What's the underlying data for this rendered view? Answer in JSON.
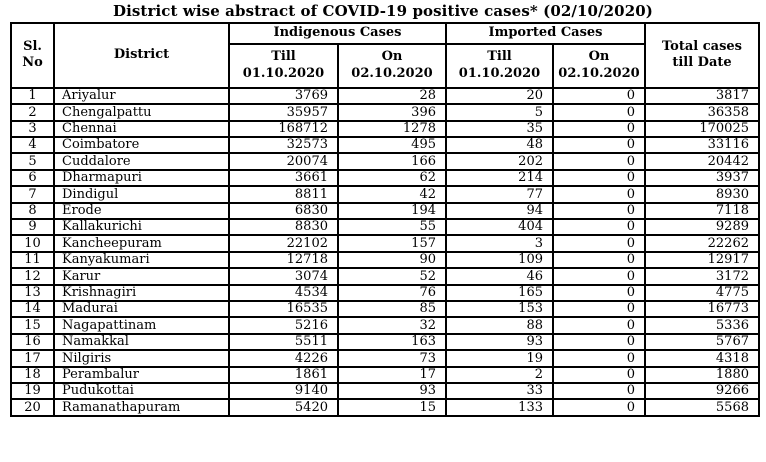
{
  "title": "District wise abstract of COVID-19 positive cases* (02/10/2020)",
  "table": {
    "headers": {
      "sl_no": "Sl.\nNo",
      "district": "District",
      "indigenous_group": "Indigenous Cases",
      "imported_group": "Imported Cases",
      "till_label": "Till\n01.10.2020",
      "on_label": "On\n02.10.2020",
      "total": "Total cases\ntill Date"
    },
    "rows": [
      {
        "sl": "1",
        "district": "Ariyalur",
        "ind_till": "3769",
        "ind_on": "28",
        "imp_till": "20",
        "imp_on": "0",
        "total": "3817"
      },
      {
        "sl": "2",
        "district": "Chengalpattu",
        "ind_till": "35957",
        "ind_on": "396",
        "imp_till": "5",
        "imp_on": "0",
        "total": "36358"
      },
      {
        "sl": "3",
        "district": "Chennai",
        "ind_till": "168712",
        "ind_on": "1278",
        "imp_till": "35",
        "imp_on": "0",
        "total": "170025"
      },
      {
        "sl": "4",
        "district": "Coimbatore",
        "ind_till": "32573",
        "ind_on": "495",
        "imp_till": "48",
        "imp_on": "0",
        "total": "33116"
      },
      {
        "sl": "5",
        "district": "Cuddalore",
        "ind_till": "20074",
        "ind_on": "166",
        "imp_till": "202",
        "imp_on": "0",
        "total": "20442"
      },
      {
        "sl": "6",
        "district": "Dharmapuri",
        "ind_till": "3661",
        "ind_on": "62",
        "imp_till": "214",
        "imp_on": "0",
        "total": "3937"
      },
      {
        "sl": "7",
        "district": "Dindigul",
        "ind_till": "8811",
        "ind_on": "42",
        "imp_till": "77",
        "imp_on": "0",
        "total": "8930"
      },
      {
        "sl": "8",
        "district": "Erode",
        "ind_till": "6830",
        "ind_on": "194",
        "imp_till": "94",
        "imp_on": "0",
        "total": "7118"
      },
      {
        "sl": "9",
        "district": "Kallakurichi",
        "ind_till": "8830",
        "ind_on": "55",
        "imp_till": "404",
        "imp_on": "0",
        "total": "9289"
      },
      {
        "sl": "10",
        "district": "Kancheepuram",
        "ind_till": "22102",
        "ind_on": "157",
        "imp_till": "3",
        "imp_on": "0",
        "total": "22262"
      },
      {
        "sl": "11",
        "district": "Kanyakumari",
        "ind_till": "12718",
        "ind_on": "90",
        "imp_till": "109",
        "imp_on": "0",
        "total": "12917"
      },
      {
        "sl": "12",
        "district": "Karur",
        "ind_till": "3074",
        "ind_on": "52",
        "imp_till": "46",
        "imp_on": "0",
        "total": "3172"
      },
      {
        "sl": "13",
        "district": "Krishnagiri",
        "ind_till": "4534",
        "ind_on": "76",
        "imp_till": "165",
        "imp_on": "0",
        "total": "4775"
      },
      {
        "sl": "14",
        "district": "Madurai",
        "ind_till": "16535",
        "ind_on": "85",
        "imp_till": "153",
        "imp_on": "0",
        "total": "16773"
      },
      {
        "sl": "15",
        "district": "Nagapattinam",
        "ind_till": "5216",
        "ind_on": "32",
        "imp_till": "88",
        "imp_on": "0",
        "total": "5336"
      },
      {
        "sl": "16",
        "district": "Namakkal",
        "ind_till": "5511",
        "ind_on": "163",
        "imp_till": "93",
        "imp_on": "0",
        "total": "5767"
      },
      {
        "sl": "17",
        "district": "Nilgiris",
        "ind_till": "4226",
        "ind_on": "73",
        "imp_till": "19",
        "imp_on": "0",
        "total": "4318"
      },
      {
        "sl": "18",
        "district": "Perambalur",
        "ind_till": "1861",
        "ind_on": "17",
        "imp_till": "2",
        "imp_on": "0",
        "total": "1880"
      },
      {
        "sl": "19",
        "district": "Pudukottai",
        "ind_till": "9140",
        "ind_on": "93",
        "imp_till": "33",
        "imp_on": "0",
        "total": "9266"
      },
      {
        "sl": "20",
        "district": "Ramanathapuram",
        "ind_till": "5420",
        "ind_on": "15",
        "imp_till": "133",
        "imp_on": "0",
        "total": "5568"
      }
    ]
  }
}
